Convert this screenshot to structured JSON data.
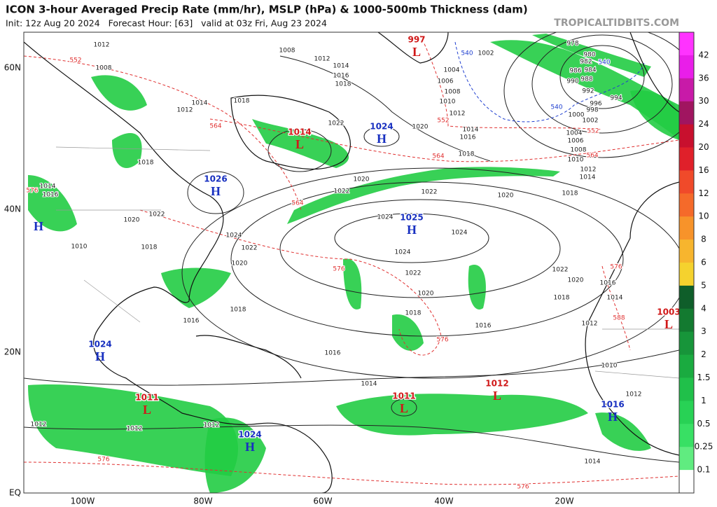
{
  "header": {
    "title": "ICON 3-hour Averaged Precip Rate (mm/hr), MSLP (hPa) & 1000-500mb Thickness (dam)",
    "subtitle": "Init: 12z Aug 20 2024   Forecast Hour: [63]   valid at 03z Fri, Aug 23 2024",
    "watermark": "TROPICALTIDBITS.COM"
  },
  "latitude_labels": [
    "60N",
    "40N",
    "20N",
    "EQ"
  ],
  "longitude_labels": [
    "100W",
    "80W",
    "60W",
    "40W",
    "20W"
  ],
  "colorbar": {
    "levels": [
      "42",
      "36",
      "30",
      "24",
      "20",
      "16",
      "12",
      "10",
      "8",
      "6",
      "5",
      "4",
      "3",
      "2",
      "1.5",
      "1",
      "0.5",
      "0.25",
      "0.1"
    ],
    "colors": [
      "#ff33ff",
      "#e91ee9",
      "#c81aa8",
      "#a01560",
      "#c8102e",
      "#e0202a",
      "#f04a2a",
      "#f56a2a",
      "#f7932a",
      "#f7b52e",
      "#f5d22e",
      "#0f5e2a",
      "#137a30",
      "#17953a",
      "#1aab40",
      "#20c04a",
      "#28d255",
      "#38e064",
      "#60ec80",
      "#ffffff"
    ]
  },
  "pressure_centers": [
    {
      "symbol": "L",
      "value": "1014",
      "color": "#d01818"
    },
    {
      "symbol": "H",
      "value": "1024",
      "color": "#1830c0"
    },
    {
      "symbol": "H",
      "value": "1026",
      "color": "#1830c0"
    },
    {
      "symbol": "H",
      "value": "1025",
      "color": "#1830c0"
    },
    {
      "symbol": "H",
      "color": "#1830c0"
    },
    {
      "symbol": "H",
      "value": "1024",
      "color": "#1830c0"
    },
    {
      "symbol": "L",
      "value": "1011",
      "color": "#d01818"
    },
    {
      "symbol": "H",
      "value": "1024",
      "color": "#1830c0"
    },
    {
      "symbol": "L",
      "value": "1011",
      "color": "#d01818"
    },
    {
      "symbol": "L",
      "value": "1012",
      "color": "#d01818"
    },
    {
      "symbol": "H",
      "value": "1016",
      "color": "#1830c0"
    },
    {
      "symbol": "L",
      "value": "1003",
      "color": "#d01818"
    },
    {
      "symbol": "L",
      "value": "997",
      "color": "#d01818"
    }
  ],
  "contour_labels": [
    {
      "text": "1008",
      "color": "#222"
    },
    {
      "text": "1012",
      "color": "#222"
    },
    {
      "text": "1014",
      "color": "#222"
    },
    {
      "text": "1016",
      "color": "#222"
    },
    {
      "text": "1018",
      "color": "#222"
    },
    {
      "text": "1002",
      "color": "#222"
    },
    {
      "text": "1004",
      "color": "#222"
    },
    {
      "text": "1006",
      "color": "#222"
    },
    {
      "text": "1008",
      "color": "#222"
    },
    {
      "text": "1010",
      "color": "#222"
    },
    {
      "text": "1012",
      "color": "#222"
    },
    {
      "text": "1014",
      "color": "#222"
    },
    {
      "text": "1016",
      "color": "#222"
    },
    {
      "text": "1018",
      "color": "#222"
    },
    {
      "text": "1020",
      "color": "#222"
    },
    {
      "text": "1022",
      "color": "#222"
    },
    {
      "text": "1020",
      "color": "#222"
    },
    {
      "text": "1022",
      "color": "#222"
    },
    {
      "text": "1022",
      "color": "#222"
    },
    {
      "text": "1020",
      "color": "#222"
    },
    {
      "text": "1018",
      "color": "#222"
    },
    {
      "text": "1024",
      "color": "#222"
    },
    {
      "text": "1024",
      "color": "#222"
    },
    {
      "text": "1024",
      "color": "#222"
    },
    {
      "text": "1022",
      "color": "#222"
    },
    {
      "text": "1020",
      "color": "#222"
    },
    {
      "text": "1018",
      "color": "#222"
    },
    {
      "text": "1016",
      "color": "#222"
    },
    {
      "text": "1022",
      "color": "#222"
    },
    {
      "text": "1020",
      "color": "#222"
    },
    {
      "text": "1018",
      "color": "#222"
    },
    {
      "text": "1016",
      "color": "#222"
    },
    {
      "text": "1014",
      "color": "#222"
    },
    {
      "text": "1012",
      "color": "#222"
    },
    {
      "text": "1012",
      "color": "#222"
    },
    {
      "text": "1014",
      "color": "#222"
    },
    {
      "text": "1012",
      "color": "#222"
    },
    {
      "text": "1016",
      "color": "#222"
    },
    {
      "text": "1014",
      "color": "#222"
    },
    {
      "text": "1018",
      "color": "#222"
    },
    {
      "text": "1022",
      "color": "#222"
    },
    {
      "text": "1020",
      "color": "#222"
    },
    {
      "text": "1018",
      "color": "#222"
    },
    {
      "text": "1010",
      "color": "#222"
    },
    {
      "text": "1016",
      "color": "#222"
    },
    {
      "text": "1018",
      "color": "#222"
    },
    {
      "text": "1020",
      "color": "#222"
    },
    {
      "text": "1022",
      "color": "#222"
    },
    {
      "text": "1024",
      "color": "#222"
    },
    {
      "text": "1012",
      "color": "#222"
    },
    {
      "text": "1008",
      "color": "#222"
    },
    {
      "text": "1012",
      "color": "#222"
    },
    {
      "text": "1014",
      "color": "#222"
    },
    {
      "text": "1018",
      "color": "#222"
    },
    {
      "text": "1012",
      "color": "#222"
    },
    {
      "text": "1010",
      "color": "#222"
    },
    {
      "text": "1012",
      "color": "#222"
    },
    {
      "text": "1014",
      "color": "#222"
    },
    {
      "text": "1016",
      "color": "#222"
    },
    {
      "text": "1002",
      "color": "#222"
    },
    {
      "text": "1000",
      "color": "#222"
    },
    {
      "text": "998",
      "color": "#222"
    },
    {
      "text": "996",
      "color": "#222"
    },
    {
      "text": "994",
      "color": "#222"
    },
    {
      "text": "992",
      "color": "#222"
    },
    {
      "text": "990",
      "color": "#222"
    },
    {
      "text": "988",
      "color": "#222"
    },
    {
      "text": "986",
      "color": "#222"
    },
    {
      "text": "984",
      "color": "#222"
    },
    {
      "text": "982",
      "color": "#222"
    },
    {
      "text": "980",
      "color": "#222"
    },
    {
      "text": "978",
      "color": "#222"
    },
    {
      "text": "1004",
      "color": "#222"
    },
    {
      "text": "1006",
      "color": "#222"
    },
    {
      "text": "1008",
      "color": "#222"
    },
    {
      "text": "1010",
      "color": "#222"
    },
    {
      "text": "1012",
      "color": "#222"
    },
    {
      "text": "1014",
      "color": "#222"
    },
    {
      "text": "552",
      "color": "#e03030"
    },
    {
      "text": "564",
      "color": "#e03030"
    },
    {
      "text": "564",
      "color": "#e03030"
    },
    {
      "text": "552",
      "color": "#e03030"
    },
    {
      "text": "564",
      "color": "#e03030"
    },
    {
      "text": "576",
      "color": "#e03030"
    },
    {
      "text": "576",
      "color": "#e03030"
    },
    {
      "text": "576",
      "color": "#e03030"
    },
    {
      "text": "588",
      "color": "#e03030"
    },
    {
      "text": "564",
      "color": "#e03030"
    },
    {
      "text": "552",
      "color": "#e03030"
    },
    {
      "text": "576",
      "color": "#e03030"
    },
    {
      "text": "576",
      "color": "#e03030"
    },
    {
      "text": "576",
      "color": "#e03030"
    },
    {
      "text": "540",
      "color": "#2040d0"
    },
    {
      "text": "540",
      "color": "#2040d0"
    },
    {
      "text": "540",
      "color": "#2040d0"
    }
  ]
}
